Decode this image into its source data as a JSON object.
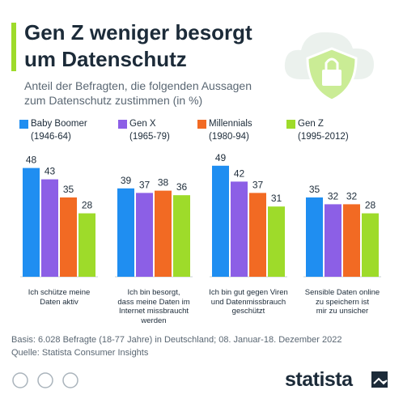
{
  "chart_data": {
    "type": "bar",
    "title": "Gen Z weniger besorgt\num Datenschutz",
    "subtitle": "Anteil der Befragten, die folgenden Aussagen\nzum Datenschutz zustimmen (in %)",
    "categories": [
      "Ich schütze meine\nDaten aktiv",
      "Ich bin besorgt,\ndass meine Daten im\nInternet missbraucht\nwerden",
      "Ich bin gut gegen Viren\nund Datenmissbrauch\ngeschützt",
      "Sensible Daten online\nzu speichern ist\nmir zu unsicher"
    ],
    "series": [
      {
        "name": "Baby Boomer\n(1946-64)",
        "color": "#1f8ef1",
        "values": [
          48,
          39,
          49,
          35
        ]
      },
      {
        "name": "Gen X\n(1965-79)",
        "color": "#8c5fe6",
        "values": [
          43,
          37,
          42,
          32
        ]
      },
      {
        "name": "Millennials\n(1980-94)",
        "color": "#f26a23",
        "values": [
          35,
          38,
          37,
          32
        ]
      },
      {
        "name": "Gen Z\n(1995-2012)",
        "color": "#9edb2a",
        "values": [
          28,
          36,
          31,
          28
        ]
      }
    ],
    "note": "Basis: 6.028 Befragte (18-77 Jahre) in Deutschland; 08. Januar-18. Dezember 2022",
    "source": "Quelle: Statista Consumer Insights",
    "brand": "statista"
  }
}
